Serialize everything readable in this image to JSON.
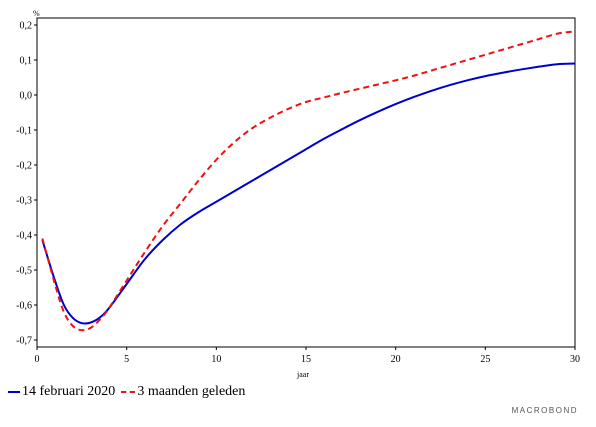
{
  "chart_data": {
    "type": "line",
    "ylabel": "%",
    "xlabel": "jaar",
    "xlim": [
      0,
      30
    ],
    "ylim": [
      -0.72,
      0.22
    ],
    "x_ticks": [
      0,
      5,
      10,
      15,
      20,
      25,
      30
    ],
    "y_ticks": [
      {
        "value": 0.2,
        "label": "0,2"
      },
      {
        "value": 0.1,
        "label": "0,1"
      },
      {
        "value": 0.0,
        "label": "0,0"
      },
      {
        "value": -0.1,
        "label": "-0,1"
      },
      {
        "value": -0.2,
        "label": "-0,2"
      },
      {
        "value": -0.3,
        "label": "-0,3"
      },
      {
        "value": -0.4,
        "label": "-0,4"
      },
      {
        "value": -0.5,
        "label": "-0,5"
      },
      {
        "value": -0.6,
        "label": "-0,6"
      },
      {
        "value": -0.7,
        "label": "-0,7"
      }
    ],
    "grid": false,
    "legend_position": "bottom-left",
    "series": [
      {
        "name": "14 februari 2020",
        "color": "#0000CC",
        "style": "solid",
        "x": [
          0.3,
          1,
          1.5,
          2,
          2.5,
          3,
          3.5,
          4,
          5,
          6,
          7,
          8,
          9,
          10,
          11,
          12,
          13,
          14,
          15,
          16,
          17,
          18,
          19,
          20,
          21,
          22,
          23,
          24,
          25,
          26,
          27,
          28,
          29,
          30
        ],
        "values": [
          -0.415,
          -0.53,
          -0.6,
          -0.637,
          -0.652,
          -0.65,
          -0.636,
          -0.61,
          -0.54,
          -0.47,
          -0.415,
          -0.37,
          -0.335,
          -0.305,
          -0.275,
          -0.245,
          -0.215,
          -0.185,
          -0.155,
          -0.125,
          -0.098,
          -0.072,
          -0.048,
          -0.026,
          -0.006,
          0.012,
          0.028,
          0.042,
          0.054,
          0.064,
          0.073,
          0.081,
          0.088,
          0.09
        ]
      },
      {
        "name": "3 maanden geleden",
        "color": "#EE1111",
        "style": "dashed",
        "x": [
          0.3,
          1,
          1.5,
          2,
          2.5,
          3,
          3.5,
          4,
          5,
          6,
          7,
          8,
          9,
          10,
          11,
          12,
          13,
          14,
          15,
          16,
          17,
          18,
          19,
          20,
          21,
          22,
          23,
          24,
          25,
          26,
          27,
          28,
          29,
          30
        ],
        "values": [
          -0.41,
          -0.54,
          -0.62,
          -0.66,
          -0.672,
          -0.665,
          -0.642,
          -0.61,
          -0.53,
          -0.45,
          -0.375,
          -0.31,
          -0.245,
          -0.185,
          -0.135,
          -0.095,
          -0.065,
          -0.04,
          -0.02,
          -0.007,
          0.006,
          0.018,
          0.03,
          0.042,
          0.055,
          0.07,
          0.085,
          0.1,
          0.115,
          0.13,
          0.145,
          0.16,
          0.175,
          0.182
        ]
      }
    ]
  },
  "legend": {
    "items": [
      {
        "label": "14 februari 2020"
      },
      {
        "label": "3 maanden geleden"
      }
    ]
  },
  "brand": "MACROBOND"
}
